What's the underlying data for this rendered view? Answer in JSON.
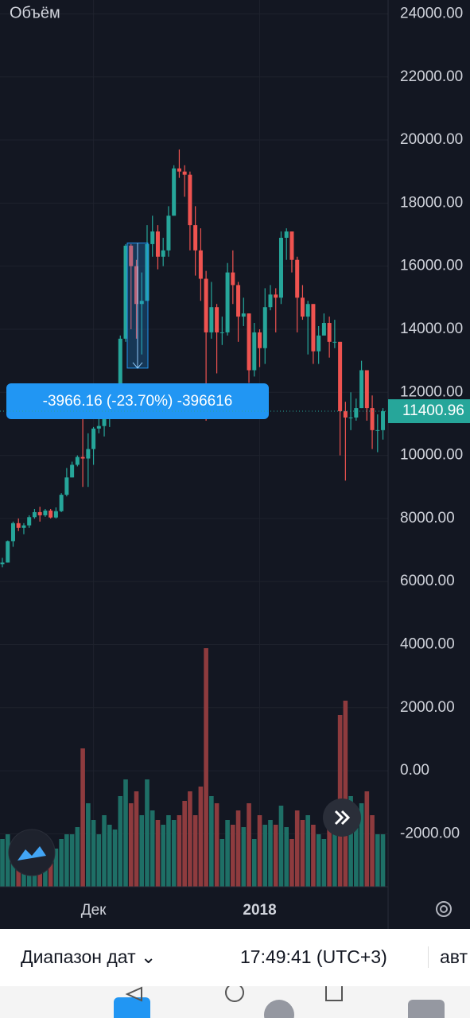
{
  "chart_data": {
    "type": "candlestick",
    "categories": [
      null,
      null,
      null,
      null,
      null,
      null,
      null,
      null,
      null,
      null,
      null,
      null,
      null,
      null,
      null,
      null,
      null,
      "Дек",
      null,
      null,
      null,
      null,
      null,
      null,
      null,
      null,
      null,
      null,
      null,
      null,
      null,
      null,
      null,
      null,
      null,
      null,
      null,
      null,
      null,
      null,
      null,
      null,
      null,
      null,
      null,
      null,
      null,
      null,
      "2018",
      null,
      null,
      null,
      null,
      null,
      null,
      null,
      null,
      null,
      null,
      null,
      null,
      null,
      null,
      null,
      null,
      null,
      null,
      null,
      null,
      null,
      null,
      null
    ],
    "open": [
      6550,
      6600,
      7280,
      7850,
      7700,
      7780,
      8040,
      8200,
      8100,
      8250,
      8030,
      8230,
      8750,
      9300,
      9700,
      9950,
      9900,
      10200,
      10850,
      10930,
      11300,
      11620,
      11670,
      13700,
      16650,
      16000,
      14800,
      14900,
      16700,
      17100,
      16300,
      16500,
      17600,
      19100,
      19000,
      18900,
      17300,
      16500,
      15600,
      13900,
      14700,
      13900,
      13900,
      15800,
      15400,
      14400,
      14500,
      12700,
      13900,
      13400,
      14700,
      15100,
      15000,
      16900,
      17100,
      16200,
      15000,
      14400,
      14800,
      13300,
      13800,
      14200,
      13600,
      13600,
      11400,
      11200,
      11200,
      11500,
      12700,
      11500,
      10800,
      10800
    ],
    "high": [
      6750,
      7300,
      7900,
      8000,
      7850,
      8100,
      8300,
      8370,
      8300,
      8300,
      8350,
      8800,
      9600,
      9800,
      10000,
      11400,
      10700,
      10900,
      11200,
      11800,
      11650,
      11900,
      13800,
      16700,
      16700,
      16200,
      15800,
      17300,
      17600,
      17300,
      16900,
      17900,
      19200,
      19700,
      19200,
      19000,
      17900,
      17200,
      15850,
      15500,
      14800,
      14400,
      16100,
      16500,
      15500,
      15000,
      14500,
      14200,
      14000,
      15300,
      15400,
      15300,
      17100,
      17200,
      17100,
      16300,
      15400,
      14900,
      14800,
      14100,
      14500,
      14400,
      14300,
      13600,
      11700,
      12000,
      11800,
      13000,
      12700,
      11900,
      11300,
      11500
    ],
    "low": [
      6450,
      6600,
      7100,
      7600,
      7500,
      7700,
      7990,
      7900,
      8050,
      8000,
      8000,
      8200,
      8700,
      9300,
      9650,
      9000,
      9000,
      9700,
      10700,
      10600,
      10900,
      11500,
      11600,
      13600,
      14000,
      13700,
      13200,
      14900,
      16300,
      15900,
      16000,
      16300,
      17600,
      18800,
      18200,
      16500,
      15700,
      14900,
      11100,
      13700,
      12600,
      13500,
      13800,
      14800,
      13600,
      14100,
      12300,
      12500,
      12800,
      12900,
      14600,
      13900,
      14800,
      16200,
      15800,
      13900,
      14300,
      13200,
      12900,
      12900,
      13800,
      13100,
      13400,
      10000,
      9200,
      10800,
      11100,
      11500,
      11100,
      10200,
      10100,
      10500
    ],
    "close": [
      6600,
      7280,
      7850,
      7700,
      7780,
      8040,
      8200,
      8100,
      8250,
      8030,
      8230,
      8750,
      9300,
      9700,
      9950,
      9900,
      10200,
      10850,
      10930,
      11300,
      11620,
      11670,
      13700,
      16650,
      16000,
      14800,
      14900,
      16700,
      17100,
      16300,
      16500,
      17600,
      19100,
      19000,
      18900,
      17300,
      16500,
      15600,
      13900,
      14700,
      13900,
      13900,
      15800,
      15400,
      14400,
      14500,
      12700,
      13900,
      13400,
      14700,
      15100,
      15000,
      16900,
      17100,
      16200,
      15000,
      14400,
      14800,
      13300,
      13800,
      14200,
      13600,
      13600,
      11400,
      11200,
      11200,
      11500,
      12700,
      11500,
      10800,
      10800,
      11400
    ],
    "up_color": "#26a69a",
    "down_color": "#ef5350",
    "volume": {
      "name": "Объём",
      "up_color": "#1e6f66",
      "down_color": "#8e3b3e",
      "vlim": [
        0,
        100
      ],
      "values": [
        20,
        22,
        18,
        15,
        16,
        18,
        20,
        17,
        15,
        14,
        16,
        20,
        22,
        22,
        25,
        58,
        35,
        28,
        22,
        30,
        26,
        24,
        38,
        45,
        35,
        40,
        30,
        45,
        32,
        28,
        26,
        30,
        28,
        30,
        36,
        40,
        30,
        42,
        100,
        38,
        35,
        20,
        28,
        26,
        32,
        25,
        35,
        20,
        30,
        26,
        28,
        26,
        34,
        25,
        20,
        32,
        28,
        30,
        26,
        22,
        20,
        24,
        30,
        72,
        78,
        38,
        25,
        35,
        40,
        30,
        22,
        22
      ]
    },
    "ylim": [
      -3680,
      24440
    ],
    "yticks": [
      {
        "value": 24000,
        "label": "24000.00"
      },
      {
        "value": 22000,
        "label": "22000.00"
      },
      {
        "value": 20000,
        "label": "20000.00"
      },
      {
        "value": 18000,
        "label": "18000.00"
      },
      {
        "value": 16000,
        "label": "16000.00"
      },
      {
        "value": 14000,
        "label": "14000.00"
      },
      {
        "value": 12000,
        "label": "12000.00"
      },
      {
        "value": 10000,
        "label": "10000.00"
      },
      {
        "value": 8000,
        "label": "8000.00"
      },
      {
        "value": 6000,
        "label": "6000.00"
      },
      {
        "value": 4000,
        "label": "4000.00"
      },
      {
        "value": 2000,
        "label": "2000.00"
      },
      {
        "value": 0,
        "label": "0.00"
      },
      {
        "value": -2000,
        "label": "-2000.00"
      }
    ],
    "last_price": {
      "value": 11400.96,
      "label": "11400.96"
    },
    "measure": {
      "start": 16733.16,
      "end": 12767,
      "label": "-3966.16 (-23.70%) -396616"
    },
    "grid": true
  },
  "footer": {
    "range": "Диапазон дат",
    "time": "17:49:41 (UTC+3)",
    "scale": "авт"
  }
}
